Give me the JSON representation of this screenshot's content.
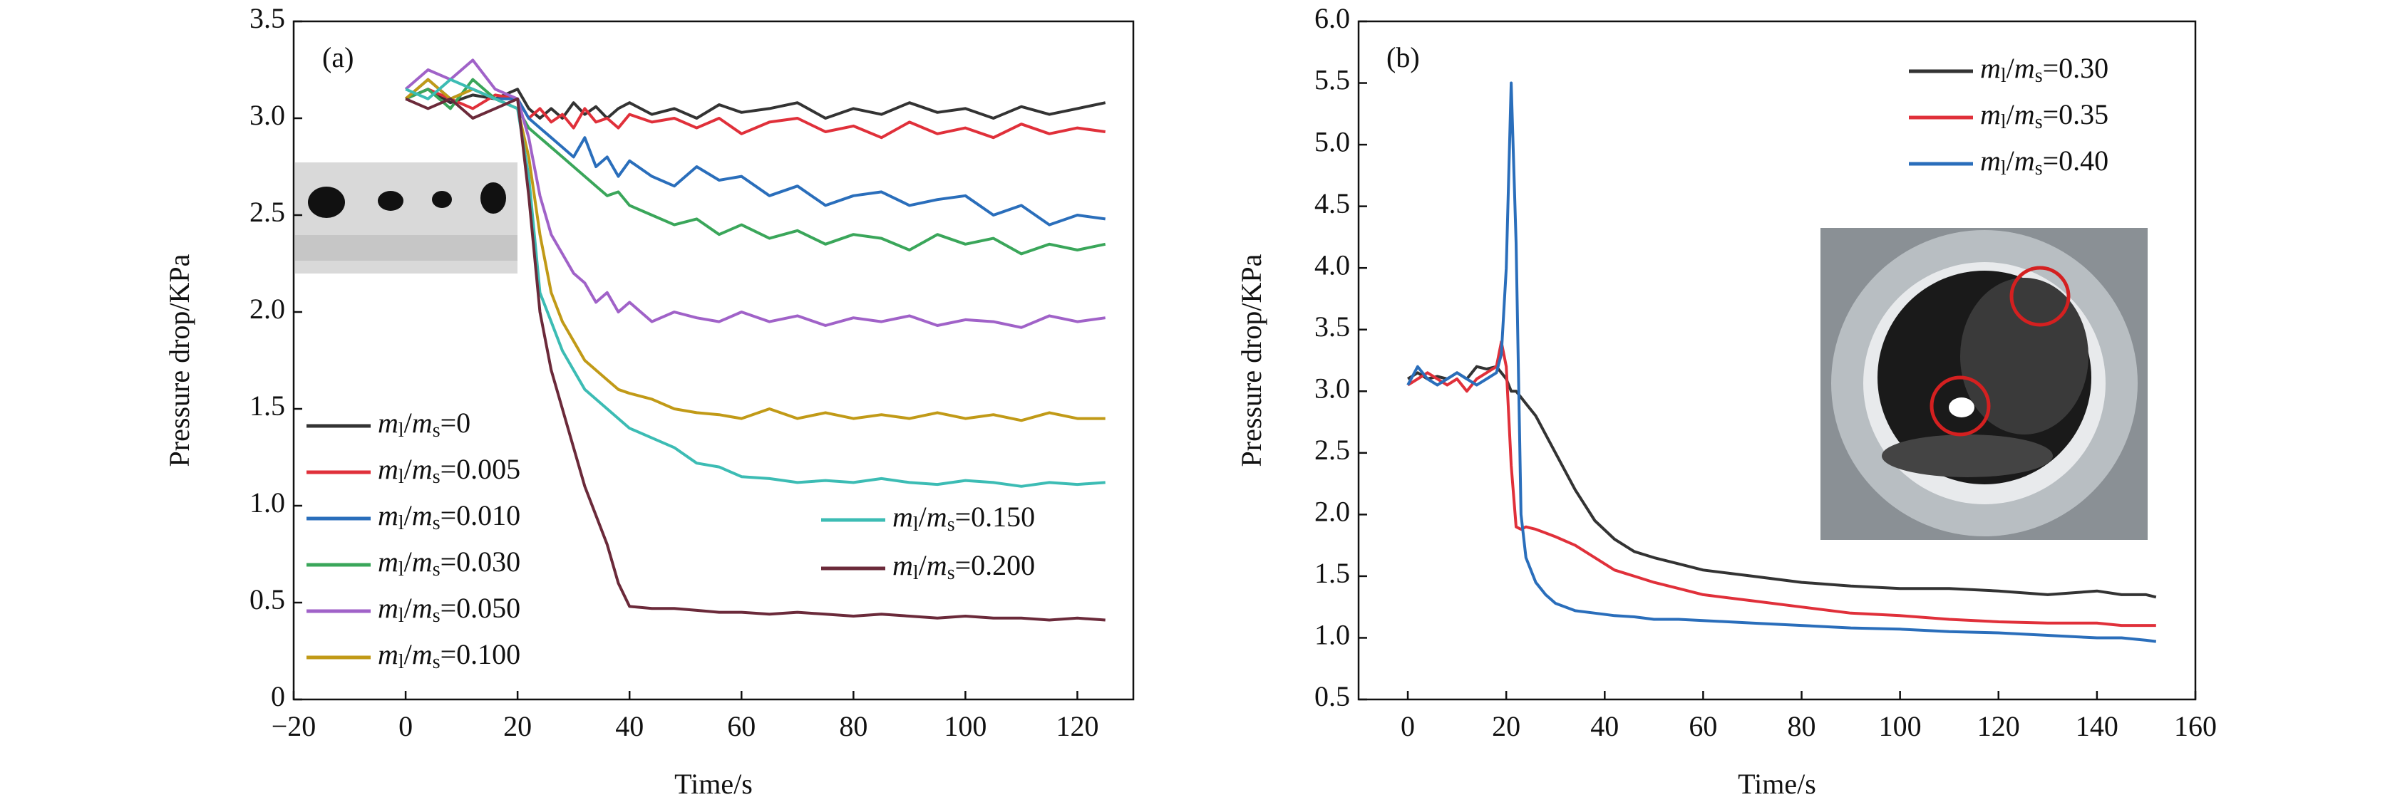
{
  "chart_data": [
    {
      "type": "line",
      "title": "(a)",
      "xlabel": "Time/s",
      "ylabel": "Pressure drop/KPa",
      "xlim": [
        -20,
        130
      ],
      "ylim": [
        0,
        3.5
      ],
      "xticks": [
        {
          "value": -20,
          "label": "−20"
        },
        0,
        20,
        40,
        60,
        80,
        100,
        120
      ],
      "yticks": [
        0,
        0.5,
        {
          "value": 1,
          "label": "1.0"
        },
        1.5,
        {
          "value": 2,
          "label": "2.0"
        },
        2.5,
        {
          "value": 3,
          "label": "3.0"
        },
        3.5
      ],
      "x": [
        0,
        4,
        8,
        12,
        16,
        20,
        22,
        24,
        26,
        28,
        30,
        32,
        34,
        36,
        38,
        40,
        44,
        48,
        52,
        56,
        60,
        65,
        70,
        75,
        80,
        85,
        90,
        95,
        100,
        105,
        110,
        115,
        120,
        125
      ],
      "series": [
        {
          "name": "ml/ms=0",
          "color": "#333333",
          "values": [
            3.1,
            3.15,
            3.08,
            3.12,
            3.1,
            3.15,
            3.05,
            3.0,
            3.05,
            3.0,
            3.08,
            3.02,
            3.06,
            3.0,
            3.05,
            3.08,
            3.02,
            3.05,
            3.0,
            3.07,
            3.03,
            3.05,
            3.08,
            3.0,
            3.05,
            3.02,
            3.08,
            3.03,
            3.05,
            3.0,
            3.06,
            3.02,
            3.05,
            3.08
          ]
        },
        {
          "name": "ml/ms=0.005",
          "color": "#e0303a",
          "values": [
            3.1,
            3.15,
            3.1,
            3.05,
            3.12,
            3.1,
            3.0,
            3.05,
            2.98,
            3.02,
            2.95,
            3.05,
            2.98,
            3.0,
            2.95,
            3.02,
            2.98,
            3.0,
            2.95,
            3.0,
            2.92,
            2.98,
            3.0,
            2.93,
            2.96,
            2.9,
            2.98,
            2.92,
            2.95,
            2.9,
            2.97,
            2.92,
            2.95,
            2.93
          ]
        },
        {
          "name": "ml/ms=0.010",
          "color": "#2a6ebb",
          "values": [
            3.1,
            3.2,
            3.1,
            3.15,
            3.1,
            3.1,
            3.0,
            2.95,
            2.9,
            2.85,
            2.8,
            2.9,
            2.75,
            2.8,
            2.7,
            2.78,
            2.7,
            2.65,
            2.75,
            2.68,
            2.7,
            2.6,
            2.65,
            2.55,
            2.6,
            2.62,
            2.55,
            2.58,
            2.6,
            2.5,
            2.55,
            2.45,
            2.5,
            2.48
          ]
        },
        {
          "name": "ml/ms=0.030",
          "color": "#3aa65a",
          "values": [
            3.1,
            3.15,
            3.05,
            3.2,
            3.1,
            3.05,
            2.95,
            2.9,
            2.85,
            2.8,
            2.75,
            2.7,
            2.65,
            2.6,
            2.62,
            2.55,
            2.5,
            2.45,
            2.48,
            2.4,
            2.45,
            2.38,
            2.42,
            2.35,
            2.4,
            2.38,
            2.32,
            2.4,
            2.35,
            2.38,
            2.3,
            2.35,
            2.32,
            2.35
          ]
        },
        {
          "name": "ml/ms=0.050",
          "color": "#a062c8",
          "values": [
            3.15,
            3.25,
            3.2,
            3.3,
            3.15,
            3.1,
            2.9,
            2.6,
            2.4,
            2.3,
            2.2,
            2.15,
            2.05,
            2.1,
            2.0,
            2.05,
            1.95,
            2.0,
            1.97,
            1.95,
            2.0,
            1.95,
            1.98,
            1.93,
            1.97,
            1.95,
            1.98,
            1.93,
            1.96,
            1.95,
            1.92,
            1.98,
            1.95,
            1.97
          ]
        },
        {
          "name": "ml/ms=0.100",
          "color": "#c19a17",
          "values": [
            3.1,
            3.2,
            3.1,
            3.15,
            3.1,
            3.05,
            2.8,
            2.4,
            2.1,
            1.95,
            1.85,
            1.75,
            1.7,
            1.65,
            1.6,
            1.58,
            1.55,
            1.5,
            1.48,
            1.47,
            1.45,
            1.5,
            1.45,
            1.48,
            1.45,
            1.47,
            1.45,
            1.48,
            1.45,
            1.47,
            1.44,
            1.48,
            1.45,
            1.45
          ]
        },
        {
          "name": "ml/ms=0.150",
          "color": "#3cbcb4",
          "values": [
            3.15,
            3.1,
            3.2,
            3.15,
            3.1,
            3.05,
            2.7,
            2.1,
            1.95,
            1.8,
            1.7,
            1.6,
            1.55,
            1.5,
            1.45,
            1.4,
            1.35,
            1.3,
            1.22,
            1.2,
            1.15,
            1.14,
            1.12,
            1.13,
            1.12,
            1.14,
            1.12,
            1.11,
            1.13,
            1.12,
            1.1,
            1.12,
            1.11,
            1.12
          ]
        },
        {
          "name": "ml/ms=0.200",
          "color": "#6b2a3a",
          "values": [
            3.1,
            3.05,
            3.1,
            3.0,
            3.05,
            3.1,
            2.6,
            2.0,
            1.7,
            1.5,
            1.3,
            1.1,
            0.95,
            0.8,
            0.6,
            0.48,
            0.47,
            0.47,
            0.46,
            0.45,
            0.45,
            0.44,
            0.45,
            0.44,
            0.43,
            0.44,
            0.43,
            0.42,
            0.43,
            0.42,
            0.42,
            0.41,
            0.42,
            0.41
          ]
        }
      ]
    },
    {
      "type": "line",
      "title": "(b)",
      "xlabel": "Time/s",
      "ylabel": "Pressure drop/KPa",
      "xlim": [
        -10,
        160
      ],
      "ylim": [
        0.5,
        6.0
      ],
      "xticks": [
        0,
        20,
        40,
        60,
        80,
        100,
        120,
        140,
        160
      ],
      "yticks": [
        0.5,
        {
          "value": 1,
          "label": "1.0"
        },
        1.5,
        {
          "value": 2,
          "label": "2.0"
        },
        2.5,
        {
          "value": 3,
          "label": "3.0"
        },
        3.5,
        {
          "value": 4,
          "label": "4.0"
        },
        4.5,
        {
          "value": 5,
          "label": "5.0"
        },
        5.5,
        {
          "value": 6,
          "label": "6.0"
        }
      ],
      "x": [
        0,
        2,
        4,
        6,
        8,
        10,
        12,
        14,
        16,
        18,
        19,
        20,
        21,
        22,
        23,
        24,
        26,
        28,
        30,
        34,
        38,
        42,
        46,
        50,
        55,
        60,
        70,
        80,
        90,
        100,
        110,
        120,
        130,
        140,
        145,
        150,
        152
      ],
      "series": [
        {
          "name": "ml/ms=0.30",
          "color": "#333333",
          "values": [
            3.1,
            3.15,
            3.1,
            3.12,
            3.1,
            3.15,
            3.1,
            3.2,
            3.18,
            3.2,
            3.15,
            3.1,
            3.0,
            3.0,
            2.95,
            2.9,
            2.8,
            2.65,
            2.5,
            2.2,
            1.95,
            1.8,
            1.7,
            1.65,
            1.6,
            1.55,
            1.5,
            1.45,
            1.42,
            1.4,
            1.4,
            1.38,
            1.35,
            1.38,
            1.35,
            1.35,
            1.33
          ]
        },
        {
          "name": "ml/ms=0.35",
          "color": "#e0303a",
          "values": [
            3.05,
            3.1,
            3.15,
            3.1,
            3.05,
            3.1,
            3.0,
            3.1,
            3.15,
            3.2,
            3.4,
            3.2,
            2.4,
            1.9,
            1.88,
            1.9,
            1.88,
            1.85,
            1.82,
            1.75,
            1.65,
            1.55,
            1.5,
            1.45,
            1.4,
            1.35,
            1.3,
            1.25,
            1.2,
            1.18,
            1.15,
            1.13,
            1.12,
            1.12,
            1.1,
            1.1,
            1.1
          ]
        },
        {
          "name": "ml/ms=0.40",
          "color": "#2a6ebb",
          "values": [
            3.05,
            3.2,
            3.1,
            3.05,
            3.1,
            3.15,
            3.1,
            3.05,
            3.1,
            3.15,
            3.3,
            4.0,
            5.5,
            4.2,
            2.0,
            1.65,
            1.45,
            1.35,
            1.28,
            1.22,
            1.2,
            1.18,
            1.17,
            1.15,
            1.15,
            1.14,
            1.12,
            1.1,
            1.08,
            1.07,
            1.05,
            1.04,
            1.02,
            1.0,
            1.0,
            0.98,
            0.97
          ]
        }
      ]
    }
  ]
}
